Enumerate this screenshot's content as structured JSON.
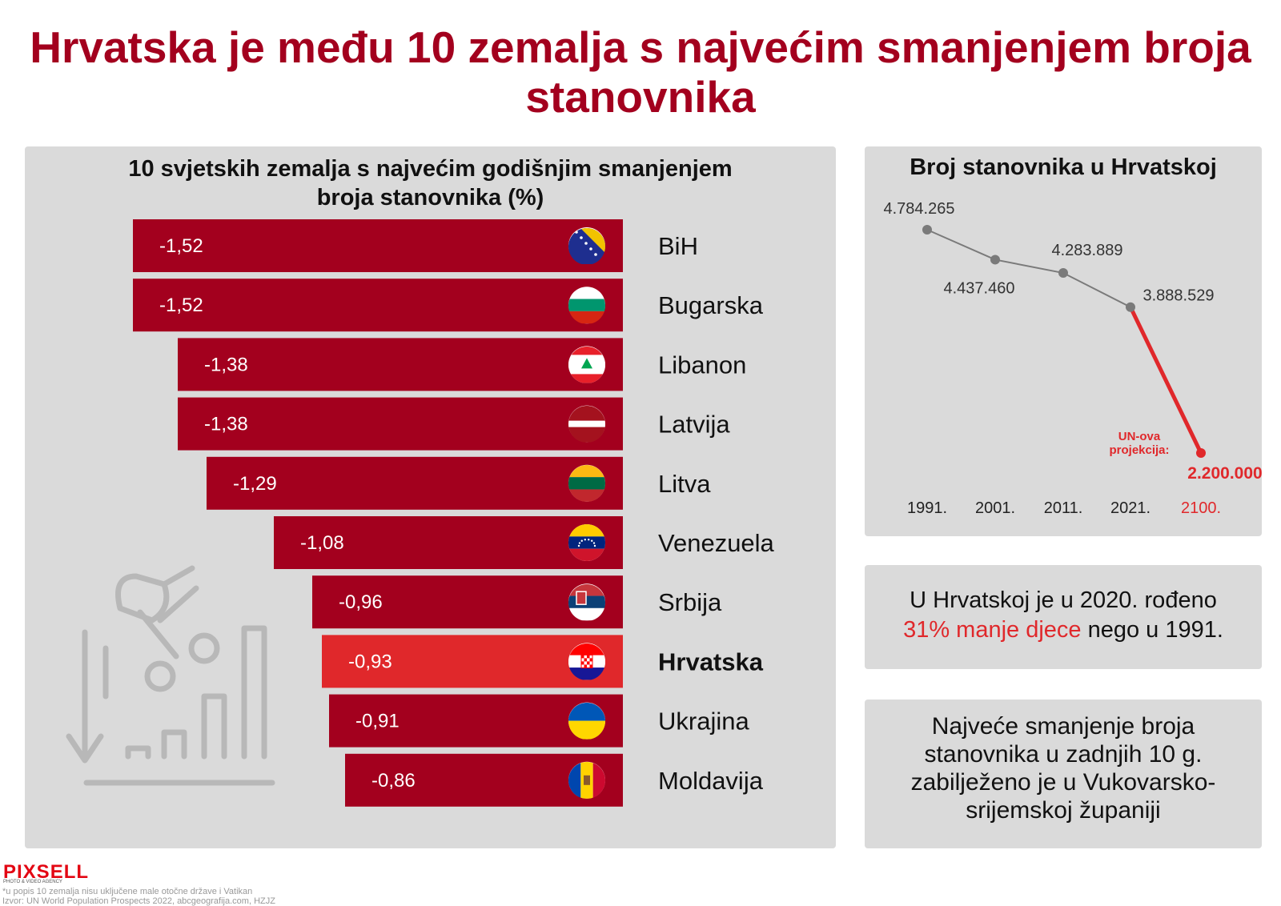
{
  "title": "Hrvatska je među 10 zemalja s najvećim smanjenjem broja stanovnika",
  "left_panel": {
    "title_line1": "10 svjetskih zemalja s najvećim godišnjim smanjenjem",
    "title_line2": "broja stanovnika (%)"
  },
  "right_panel": {
    "title": "Broj stanovnika u Hrvatskoj"
  },
  "stat1": {
    "part1": "U Hrvatskoj je u 2020. rođeno",
    "highlight": "31% manje djece",
    "part2": "nego u 1991."
  },
  "stat2": {
    "text": "Najveće smanjenje broja stanovnika u zadnjih 10 g. zabilježeno je u Vukovarsko-srijemskoj županiji"
  },
  "footer": {
    "logo": "PIXSELL",
    "tagline": "PHOTO & VIDEO AGENCY",
    "note": "*u popis 10 zemalja nisu uključene male otočne države i Vatikan",
    "source": "Izvor: UN World Population Prospects 2022, abcgeografija.com, HZJZ"
  },
  "colors": {
    "dark_red": "#a3001e",
    "highlight_red": "#e0282b",
    "panel_gray": "#dadada",
    "line_gray": "#7a7a7a"
  },
  "chart_data": [
    {
      "type": "bar",
      "orientation": "horizontal",
      "title": "10 svjetskih zemalja s najvećim godišnjim smanjenjem broja stanovnika (%)",
      "categories": [
        "BiH",
        "Bugarska",
        "Libanon",
        "Latvija",
        "Litva",
        "Venezuela",
        "Srbija",
        "Hrvatska",
        "Ukrajina",
        "Moldavija"
      ],
      "values": [
        -1.52,
        -1.52,
        -1.38,
        -1.38,
        -1.29,
        -1.08,
        -0.96,
        -0.93,
        -0.91,
        -0.86
      ],
      "value_labels": [
        "-1,52",
        "-1,52",
        "-1,38",
        "-1,38",
        "-1,29",
        "-1,08",
        "-0,96",
        "-0,93",
        "-0,91",
        "-0,86"
      ],
      "highlight": "Hrvatska",
      "flag_icons": [
        "bih-flag-icon",
        "bulgaria-flag-icon",
        "lebanon-flag-icon",
        "latvia-flag-icon",
        "lithuania-flag-icon",
        "venezuela-flag-icon",
        "serbia-flag-icon",
        "croatia-flag-icon",
        "ukraine-flag-icon",
        "moldova-flag-icon"
      ]
    },
    {
      "type": "line",
      "title": "Broj stanovnika u Hrvatskoj",
      "x": [
        "1991.",
        "2001.",
        "2011.",
        "2021.",
        "2100."
      ],
      "y": [
        4784265,
        4437460,
        4283889,
        3888529,
        2200000
      ],
      "value_labels": [
        "4.784.265",
        "4.437.460",
        "4.283.889",
        "3.888.529",
        "2.200.000"
      ],
      "projection_label": "UN-ova projekcija:",
      "projection_start_index": 3
    }
  ]
}
